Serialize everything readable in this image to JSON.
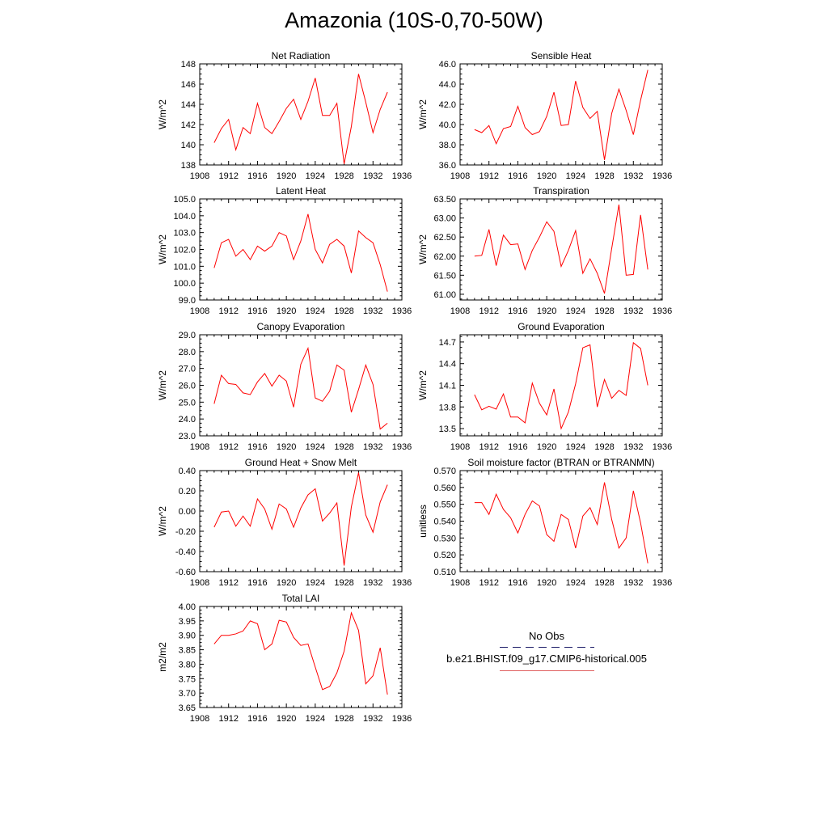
{
  "title": "Amazonia (10S-0,70-50W)",
  "legend": {
    "entries": [
      {
        "label": "No Obs",
        "color": "#1a1a66",
        "dash": "dashed"
      },
      {
        "label": "b.e21.BHIST.f09_g17.CMIP6-historical.005",
        "color": "#e06060",
        "dash": "solid"
      }
    ]
  },
  "line_color": "#ff0000",
  "chart_data": [
    {
      "type": "line",
      "title": "Net Radiation",
      "ylabel": "W/m^2",
      "xlim": [
        1908,
        1936
      ],
      "ylim": [
        138,
        148
      ],
      "xticks": [
        "1908",
        "1912",
        "1916",
        "1920",
        "1924",
        "1928",
        "1932",
        "1936"
      ],
      "yticks": [
        "138",
        "140",
        "142",
        "144",
        "146",
        "148"
      ],
      "x": [
        1910,
        1911,
        1912,
        1913,
        1914,
        1915,
        1916,
        1917,
        1918,
        1919,
        1920,
        1921,
        1922,
        1923,
        1924,
        1925,
        1926,
        1927,
        1928,
        1929,
        1930,
        1931,
        1932,
        1933,
        1934
      ],
      "y": [
        140.2,
        141.6,
        142.5,
        139.5,
        141.7,
        141.1,
        144.1,
        141.7,
        141.1,
        142.3,
        143.6,
        144.5,
        142.5,
        144.3,
        146.6,
        142.9,
        142.9,
        144.1,
        138.1,
        141.8,
        147.0,
        144.2,
        141.2,
        143.5,
        145.2
      ]
    },
    {
      "type": "line",
      "title": "Sensible Heat",
      "ylabel": "W/m^2",
      "xlim": [
        1908,
        1936
      ],
      "ylim": [
        36,
        46
      ],
      "xticks": [
        "1908",
        "1912",
        "1916",
        "1920",
        "1924",
        "1928",
        "1932",
        "1936"
      ],
      "yticks": [
        "36.0",
        "38.0",
        "40.0",
        "42.0",
        "44.0",
        "46.0"
      ],
      "x": [
        1910,
        1911,
        1912,
        1913,
        1914,
        1915,
        1916,
        1917,
        1918,
        1919,
        1920,
        1921,
        1922,
        1923,
        1924,
        1925,
        1926,
        1927,
        1928,
        1929,
        1930,
        1931,
        1932,
        1933,
        1934
      ],
      "y": [
        39.5,
        39.2,
        39.9,
        38.1,
        39.6,
        39.8,
        41.8,
        39.7,
        39.0,
        39.3,
        40.8,
        43.2,
        39.9,
        40.0,
        44.3,
        41.7,
        40.6,
        41.3,
        36.5,
        41.1,
        43.5,
        41.4,
        39.0,
        42.4,
        45.4
      ]
    },
    {
      "type": "line",
      "title": "Latent Heat",
      "ylabel": "W/m^2",
      "xlim": [
        1908,
        1936
      ],
      "ylim": [
        99,
        105
      ],
      "xticks": [
        "1908",
        "1912",
        "1916",
        "1920",
        "1924",
        "1928",
        "1932",
        "1936"
      ],
      "yticks": [
        "99.0",
        "100.0",
        "101.0",
        "102.0",
        "103.0",
        "104.0",
        "105.0"
      ],
      "x": [
        1910,
        1911,
        1912,
        1913,
        1914,
        1915,
        1916,
        1917,
        1918,
        1919,
        1920,
        1921,
        1922,
        1923,
        1924,
        1925,
        1926,
        1927,
        1928,
        1929,
        1930,
        1931,
        1932,
        1933,
        1934
      ],
      "y": [
        100.9,
        102.4,
        102.6,
        101.6,
        102.0,
        101.4,
        102.2,
        101.9,
        102.2,
        103.0,
        102.8,
        101.4,
        102.5,
        104.1,
        102.0,
        101.2,
        102.3,
        102.6,
        102.2,
        100.6,
        103.1,
        102.7,
        102.4,
        101.1,
        99.5
      ]
    },
    {
      "type": "line",
      "title": "Transpiration",
      "ylabel": "W/m^2",
      "xlim": [
        1908,
        1936
      ],
      "ylim": [
        60.85,
        63.5
      ],
      "xticks": [
        "1908",
        "1912",
        "1916",
        "1920",
        "1924",
        "1928",
        "1932",
        "1936"
      ],
      "yticks": [
        "61.00",
        "61.50",
        "62.00",
        "62.50",
        "63.00",
        "63.50"
      ],
      "x": [
        1910,
        1911,
        1912,
        1913,
        1914,
        1915,
        1916,
        1917,
        1918,
        1919,
        1920,
        1921,
        1922,
        1923,
        1924,
        1925,
        1926,
        1927,
        1928,
        1929,
        1930,
        1931,
        1932,
        1933,
        1934
      ],
      "y": [
        62.0,
        62.02,
        62.7,
        61.75,
        62.55,
        62.3,
        62.32,
        61.65,
        62.15,
        62.5,
        62.9,
        62.65,
        61.73,
        62.15,
        62.67,
        61.55,
        61.93,
        61.55,
        61.02,
        62.2,
        63.35,
        61.5,
        61.52,
        63.08,
        61.65
      ]
    },
    {
      "type": "line",
      "title": "Canopy Evaporation",
      "ylabel": "W/m^2",
      "xlim": [
        1908,
        1936
      ],
      "ylim": [
        23,
        29
      ],
      "xticks": [
        "1908",
        "1912",
        "1916",
        "1920",
        "1924",
        "1928",
        "1932",
        "1936"
      ],
      "yticks": [
        "23.0",
        "24.0",
        "25.0",
        "26.0",
        "27.0",
        "28.0",
        "29.0"
      ],
      "x": [
        1910,
        1911,
        1912,
        1913,
        1914,
        1915,
        1916,
        1917,
        1918,
        1919,
        1920,
        1921,
        1922,
        1923,
        1924,
        1925,
        1926,
        1927,
        1928,
        1929,
        1930,
        1931,
        1932,
        1933,
        1934
      ],
      "y": [
        24.9,
        26.6,
        26.1,
        26.05,
        25.55,
        25.45,
        26.2,
        26.7,
        25.95,
        26.6,
        26.25,
        24.7,
        27.25,
        28.2,
        25.25,
        25.05,
        25.65,
        27.2,
        26.9,
        24.4,
        25.75,
        27.2,
        26.05,
        23.4,
        23.75
      ]
    },
    {
      "type": "line",
      "title": "Ground Evaporation",
      "ylabel": "W/m^2",
      "xlim": [
        1908,
        1936
      ],
      "ylim": [
        13.4,
        14.8
      ],
      "xticks": [
        "1908",
        "1912",
        "1916",
        "1920",
        "1924",
        "1928",
        "1932",
        "1936"
      ],
      "yticks": [
        "13.5",
        "13.8",
        "14.1",
        "14.4",
        "14.7"
      ],
      "x": [
        1910,
        1911,
        1912,
        1913,
        1914,
        1915,
        1916,
        1917,
        1918,
        1919,
        1920,
        1921,
        1922,
        1923,
        1924,
        1925,
        1926,
        1927,
        1928,
        1929,
        1930,
        1931,
        1932,
        1933,
        1934
      ],
      "y": [
        13.97,
        13.76,
        13.81,
        13.77,
        13.98,
        13.66,
        13.66,
        13.58,
        14.13,
        13.85,
        13.69,
        14.05,
        13.5,
        13.73,
        14.12,
        14.62,
        14.66,
        13.8,
        14.18,
        13.92,
        14.03,
        13.96,
        14.69,
        14.61,
        14.1
      ]
    },
    {
      "type": "line",
      "title": "Ground Heat + Snow Melt",
      "ylabel": "W/m^2",
      "xlim": [
        1908,
        1936
      ],
      "ylim": [
        -0.6,
        0.4
      ],
      "xticks": [
        "1908",
        "1912",
        "1916",
        "1920",
        "1924",
        "1928",
        "1932",
        "1936"
      ],
      "yticks": [
        "-0.60",
        "-0.40",
        "-0.20",
        "0.00",
        "0.20",
        "0.40"
      ],
      "x": [
        1910,
        1911,
        1912,
        1913,
        1914,
        1915,
        1916,
        1917,
        1918,
        1919,
        1920,
        1921,
        1922,
        1923,
        1924,
        1925,
        1926,
        1927,
        1928,
        1929,
        1930,
        1931,
        1932,
        1933,
        1934
      ],
      "y": [
        -0.16,
        -0.01,
        0.0,
        -0.15,
        -0.05,
        -0.15,
        0.12,
        0.02,
        -0.18,
        0.07,
        0.02,
        -0.16,
        0.03,
        0.16,
        0.22,
        -0.1,
        -0.02,
        0.08,
        -0.54,
        0.04,
        0.38,
        -0.04,
        -0.21,
        0.09,
        0.26
      ]
    },
    {
      "type": "line",
      "title": "Soil moisture factor (BTRAN or BTRANMN)",
      "ylabel": "unitless",
      "xlim": [
        1908,
        1936
      ],
      "ylim": [
        0.51,
        0.57
      ],
      "xticks": [
        "1908",
        "1912",
        "1916",
        "1920",
        "1924",
        "1928",
        "1932",
        "1936"
      ],
      "yticks": [
        "0.510",
        "0.520",
        "0.530",
        "0.540",
        "0.550",
        "0.560",
        "0.570"
      ],
      "x": [
        1910,
        1911,
        1912,
        1913,
        1914,
        1915,
        1916,
        1917,
        1918,
        1919,
        1920,
        1921,
        1922,
        1923,
        1924,
        1925,
        1926,
        1927,
        1928,
        1929,
        1930,
        1931,
        1932,
        1933,
        1934
      ],
      "y": [
        0.551,
        0.551,
        0.544,
        0.556,
        0.547,
        0.542,
        0.533,
        0.544,
        0.552,
        0.549,
        0.532,
        0.528,
        0.544,
        0.541,
        0.524,
        0.543,
        0.548,
        0.538,
        0.563,
        0.541,
        0.524,
        0.53,
        0.558,
        0.539,
        0.515
      ]
    },
    {
      "type": "line",
      "title": "Total LAI",
      "ylabel": "m2/m2",
      "xlim": [
        1908,
        1936
      ],
      "ylim": [
        3.65,
        4.0
      ],
      "xticks": [
        "1908",
        "1912",
        "1916",
        "1920",
        "1924",
        "1928",
        "1932",
        "1936"
      ],
      "yticks": [
        "3.65",
        "3.70",
        "3.75",
        "3.80",
        "3.85",
        "3.90",
        "3.95",
        "4.00"
      ],
      "x": [
        1910,
        1911,
        1912,
        1913,
        1914,
        1915,
        1916,
        1917,
        1918,
        1919,
        1920,
        1921,
        1922,
        1923,
        1924,
        1925,
        1926,
        1927,
        1928,
        1929,
        1930,
        1931,
        1932,
        1933,
        1934
      ],
      "y": [
        3.87,
        3.9,
        3.9,
        3.905,
        3.915,
        3.95,
        3.94,
        3.85,
        3.87,
        3.952,
        3.946,
        3.893,
        3.865,
        3.87,
        3.79,
        3.712,
        3.723,
        3.77,
        3.845,
        3.978,
        3.917,
        3.732,
        3.76,
        3.857,
        3.695
      ]
    }
  ]
}
